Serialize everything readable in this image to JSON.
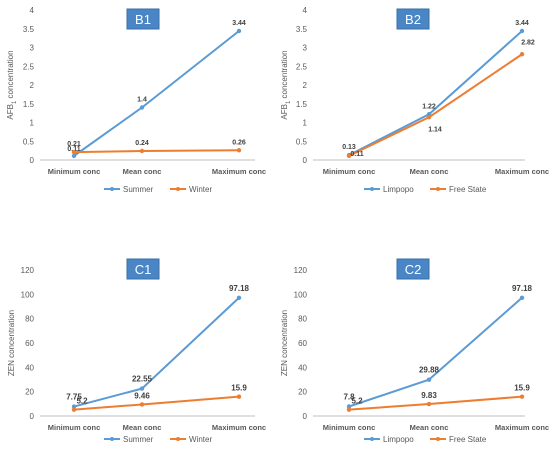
{
  "colors": {
    "series1": "#5b9bd5",
    "series2": "#ed7d31",
    "badge": "#4a86c5",
    "badge_border": "#3a6fa5",
    "axis": "#bfbfbf",
    "text": "#595959"
  },
  "chart_data": [
    {
      "id": "B1",
      "type": "line",
      "panel_label": "B1",
      "categories": [
        "Minimum conc",
        "Mean conc",
        "Maximum conc"
      ],
      "ylabel": "AFB1 concentration",
      "ylabel_main": "AFB",
      "ylabel_sub": "1",
      "ylabel_rest": " concentration",
      "ylim": [
        0,
        4
      ],
      "yticks": [
        "0",
        "0.5",
        "1",
        "1.5",
        "2",
        "2.5",
        "3",
        "3.5",
        "4"
      ],
      "series": [
        {
          "name": "Summer",
          "values": [
            0.11,
            1.4,
            3.44
          ],
          "labels": [
            "0.11",
            "1.4",
            "3.44"
          ]
        },
        {
          "name": "Winter",
          "values": [
            0.21,
            0.24,
            0.26
          ],
          "labels": [
            "0.21",
            "0.24",
            "0.26"
          ]
        }
      ]
    },
    {
      "id": "B2",
      "type": "line",
      "panel_label": "B2",
      "categories": [
        "Minimum conc",
        "Mean conc",
        "Maximum conc"
      ],
      "ylabel": "AFB1 concentration",
      "ylabel_main": "AFB",
      "ylabel_sub": "1",
      "ylabel_rest": " concentration",
      "ylim": [
        0,
        4
      ],
      "yticks": [
        "0",
        "0.5",
        "1",
        "1.5",
        "2",
        "2.5",
        "3",
        "3.5",
        "4"
      ],
      "series": [
        {
          "name": "Limpopo",
          "values": [
            0.13,
            1.22,
            3.44
          ],
          "labels": [
            "0.13",
            "1.22",
            "3.44"
          ]
        },
        {
          "name": "Free State",
          "values": [
            0.11,
            1.14,
            2.82
          ],
          "labels": [
            "0.11",
            "1.14",
            "2.82"
          ]
        }
      ]
    },
    {
      "id": "C1",
      "type": "line",
      "panel_label": "C1",
      "categories": [
        "Minimum conc",
        "Mean conc",
        "Maximum conc"
      ],
      "ylabel": "ZEN concentration",
      "ylim": [
        0,
        120
      ],
      "yticks": [
        "0",
        "20",
        "40",
        "60",
        "80",
        "100",
        "120"
      ],
      "series": [
        {
          "name": "Summer",
          "values": [
            7.75,
            22.55,
            97.18
          ],
          "labels": [
            "7.75",
            "22.55",
            "97.18"
          ]
        },
        {
          "name": "Winter",
          "values": [
            5.2,
            9.46,
            15.9
          ],
          "labels": [
            "5.2",
            "9.46",
            "15.9"
          ]
        }
      ]
    },
    {
      "id": "C2",
      "type": "line",
      "panel_label": "C2",
      "categories": [
        "Minimum conc",
        "Mean conc",
        "Maximum conc"
      ],
      "ylabel": "ZEN concentration",
      "ylim": [
        0,
        120
      ],
      "yticks": [
        "0",
        "20",
        "40",
        "60",
        "80",
        "100",
        "120"
      ],
      "series": [
        {
          "name": "Limpopo",
          "values": [
            7.8,
            29.88,
            97.18
          ],
          "labels": [
            "7.8",
            "29.88",
            "97.18"
          ]
        },
        {
          "name": "Free State",
          "values": [
            5.2,
            9.83,
            15.9
          ],
          "labels": [
            "5.2",
            "9.83",
            "15.9"
          ]
        }
      ]
    }
  ]
}
